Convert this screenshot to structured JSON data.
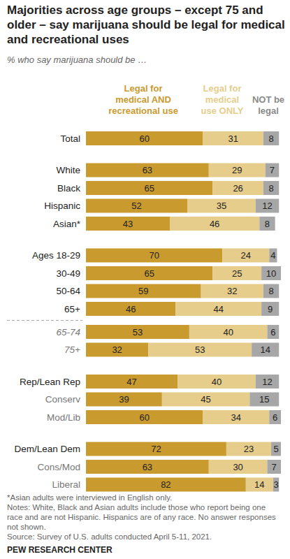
{
  "chart_data": {
    "type": "bar",
    "orientation": "horizontal",
    "stacked": true,
    "data_labels": true,
    "tick_labels": "y",
    "title": "Majorities across age groups – except 75 and older – say marijuana should be legal for medical and recreational uses",
    "subtitle": "% who say marijuana should be …",
    "categories": [
      "Total",
      "White",
      "Black",
      "Hispanic",
      "Asian*",
      "Ages 18-29",
      "30-49",
      "50-64",
      "65+",
      "65-74",
      "75+",
      "Rep/Lean Rep",
      "Conserv",
      "Mod/Lib",
      "Dem/Lean Dem",
      "Cons/Mod",
      "Liberal"
    ],
    "series": [
      {
        "name": "Legal for medical AND recreational use",
        "color": "#c99a2e",
        "values": [
          60,
          63,
          65,
          52,
          43,
          70,
          65,
          59,
          46,
          53,
          32,
          47,
          39,
          60,
          72,
          63,
          82
        ]
      },
      {
        "name": "Legal for medical use ONLY",
        "color": "#e6cd8c",
        "values": [
          31,
          29,
          26,
          35,
          46,
          24,
          25,
          32,
          44,
          40,
          53,
          40,
          45,
          34,
          23,
          30,
          14
        ]
      },
      {
        "name": "NOT be legal",
        "color": "#a7a7a7",
        "values": [
          8,
          7,
          8,
          12,
          8,
          4,
          10,
          8,
          9,
          6,
          14,
          12,
          15,
          6,
          5,
          7,
          3
        ]
      }
    ],
    "xlim": [
      0,
      100
    ],
    "annotations": [
      "*Asian adults were interviewed in English only.",
      "Notes: White, Black and Asian adults include those who report being one race and are not Hispanic. Hispanics are of any race. No answer responses not shown.",
      "Source: Survey of U.S. adults conducted April 5-11, 2021.",
      "PEW RESEARCH CENTER"
    ]
  }
}
